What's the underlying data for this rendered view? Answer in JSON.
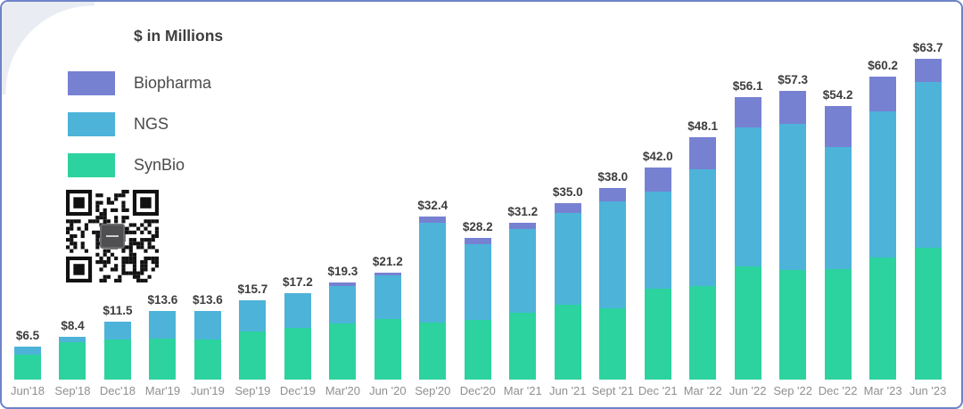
{
  "chart_data": {
    "type": "bar",
    "stacked": true,
    "title": "$ in Millions",
    "grid": false,
    "legend_position": "top-left",
    "legend_order": [
      "Biopharma",
      "NGS",
      "SynBio"
    ],
    "ylim": [
      0,
      66
    ],
    "categories": [
      "Jun'18",
      "Sep'18",
      "Dec'18",
      "Mar'19",
      "Jun'19",
      "Sep'19",
      "Dec'19",
      "Mar'20",
      "Jun '20",
      "Sep'20",
      "Dec'20",
      "Mar '21",
      "Jun '21",
      "Sept '21",
      "Dec '21",
      "Mar '22",
      "Jun '22",
      "Sep '22",
      "Dec '22",
      "Mar '23",
      "Jun '23"
    ],
    "series": [
      {
        "name": "SynBio",
        "color": "#2cd39e",
        "values": [
          5.0,
          7.5,
          8.0,
          8.1,
          8.0,
          9.6,
          10.2,
          11.2,
          12.0,
          11.3,
          11.9,
          13.3,
          14.8,
          14.2,
          18.0,
          18.6,
          22.4,
          21.8,
          22.0,
          24.3,
          26.1
        ]
      },
      {
        "name": "NGS",
        "color": "#4db3d9",
        "values": [
          1.5,
          0.9,
          3.5,
          5.5,
          5.6,
          6.1,
          7.0,
          7.4,
          8.7,
          19.9,
          15.0,
          16.5,
          18.3,
          21.2,
          19.3,
          23.1,
          27.7,
          29.0,
          24.1,
          28.9,
          33.0
        ]
      },
      {
        "name": "Biopharma",
        "color": "#7781d2",
        "values": [
          0,
          0,
          0,
          0,
          0,
          0,
          0,
          0.7,
          0.5,
          1.2,
          1.3,
          1.4,
          1.9,
          2.6,
          4.7,
          6.4,
          6.0,
          6.5,
          8.1,
          7.0,
          4.6
        ]
      }
    ],
    "totals": [
      6.5,
      8.4,
      11.5,
      13.6,
      13.6,
      15.7,
      17.2,
      19.3,
      21.2,
      32.4,
      28.2,
      31.2,
      35.0,
      38.0,
      42.0,
      48.1,
      56.1,
      57.3,
      54.2,
      60.2,
      63.7
    ],
    "bar_labels": [
      "$6.5",
      "$8.4",
      "$11.5",
      "$13.6",
      "$13.6",
      "$15.7",
      "$17.2",
      "$19.3",
      "$21.2",
      "$32.4",
      "$28.2",
      "$31.2",
      "$35.0",
      "$38.0",
      "$42.0",
      "$48.1",
      "$56.1",
      "$57.3",
      "$54.2",
      "$60.2",
      "$63.7"
    ]
  },
  "legend": {
    "title": "$ in Millions",
    "items": [
      {
        "label": "Biopharma",
        "color": "#7781d2"
      },
      {
        "label": "NGS",
        "color": "#4db3d9"
      },
      {
        "label": "SynBio",
        "color": "#2cd39e"
      }
    ]
  },
  "icons": {
    "qr_code": "qr-code"
  },
  "colors": {
    "border": "#6d83c8",
    "corner_wedge": "#e9edf3",
    "value_label": "#3d3d3d",
    "axis_label": "#8f8f8f",
    "background": "#ffffff"
  }
}
